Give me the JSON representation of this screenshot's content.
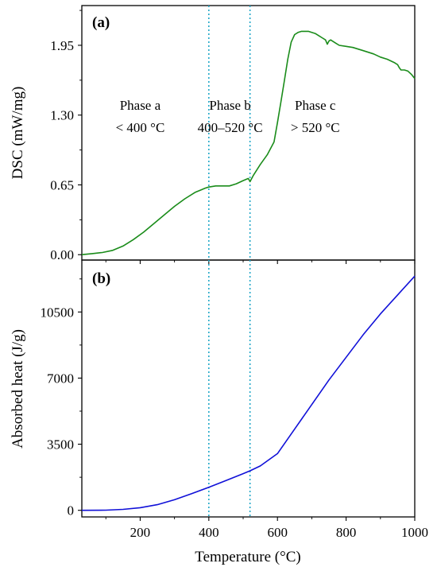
{
  "chart_data": [
    {
      "type": "line",
      "panel_label": "(a)",
      "ylabel": "DSC (mW/mg)",
      "xlim": [
        30,
        1000
      ],
      "ylim": [
        -0.05,
        2.32
      ],
      "yticks": [
        0.0,
        0.65,
        1.3,
        1.95
      ],
      "ytick_labels": [
        "0.00",
        "0.65",
        "1.30",
        "1.95"
      ],
      "series": [
        {
          "color": "#1a8c1a",
          "x": [
            30,
            60,
            90,
            120,
            150,
            180,
            210,
            240,
            270,
            300,
            330,
            360,
            390,
            400,
            420,
            440,
            460,
            480,
            500,
            515,
            520,
            530,
            550,
            570,
            580,
            590,
            600,
            610,
            620,
            630,
            640,
            650,
            660,
            670,
            680,
            690,
            700,
            710,
            720,
            730,
            740,
            745,
            750,
            755,
            760,
            770,
            780,
            800,
            820,
            850,
            880,
            900,
            920,
            940,
            950,
            955,
            960,
            970,
            980,
            990,
            1000
          ],
          "y": [
            0.0,
            0.01,
            0.02,
            0.04,
            0.08,
            0.14,
            0.21,
            0.29,
            0.37,
            0.45,
            0.52,
            0.58,
            0.62,
            0.63,
            0.64,
            0.64,
            0.64,
            0.66,
            0.69,
            0.71,
            0.68,
            0.74,
            0.84,
            0.93,
            0.99,
            1.05,
            1.23,
            1.42,
            1.62,
            1.82,
            1.98,
            2.05,
            2.07,
            2.08,
            2.08,
            2.08,
            2.07,
            2.06,
            2.04,
            2.02,
            2.0,
            1.96,
            1.99,
            2.0,
            1.99,
            1.97,
            1.95,
            1.94,
            1.93,
            1.9,
            1.87,
            1.84,
            1.82,
            1.79,
            1.77,
            1.74,
            1.72,
            1.72,
            1.71,
            1.68,
            1.64
          ]
        }
      ],
      "vlines": [
        400,
        520
      ],
      "annotations": [
        {
          "lines": [
            "Phase a",
            "< 400 °C"
          ],
          "x": 200,
          "y": 1.35
        },
        {
          "lines": [
            "Phase b",
            "400–520 °C"
          ],
          "x": 462,
          "y": 1.35
        },
        {
          "lines": [
            "Phase c",
            "> 520 °C"
          ],
          "x": 710,
          "y": 1.35
        }
      ]
    },
    {
      "type": "line",
      "panel_label": "(b)",
      "xlabel": "Temperature (°C)",
      "ylabel": "Absorbed heat (J/g)",
      "xlim": [
        30,
        1000
      ],
      "ylim": [
        -350,
        13250
      ],
      "xticks": [
        200,
        400,
        600,
        800,
        1000
      ],
      "xtick_labels": [
        "200",
        "400",
        "600",
        "800",
        "1000"
      ],
      "yticks": [
        0,
        3500,
        7000,
        10500
      ],
      "ytick_labels": [
        "0",
        "3500",
        "7000",
        "10500"
      ],
      "series": [
        {
          "color": "#1010d8",
          "x": [
            30,
            100,
            150,
            200,
            250,
            300,
            350,
            400,
            450,
            500,
            520,
            550,
            600,
            650,
            700,
            750,
            800,
            850,
            900,
            950,
            1000
          ],
          "y": [
            0,
            8,
            50,
            140,
            300,
            560,
            880,
            1220,
            1580,
            1940,
            2090,
            2350,
            3000,
            4300,
            5600,
            6900,
            8100,
            9300,
            10400,
            11400,
            12400
          ]
        }
      ],
      "vlines": [
        400,
        520
      ]
    }
  ],
  "colors": {
    "vline": "#22a8c8",
    "dsc_curve": "#1a8c1a",
    "heat_curve": "#1010d8"
  }
}
